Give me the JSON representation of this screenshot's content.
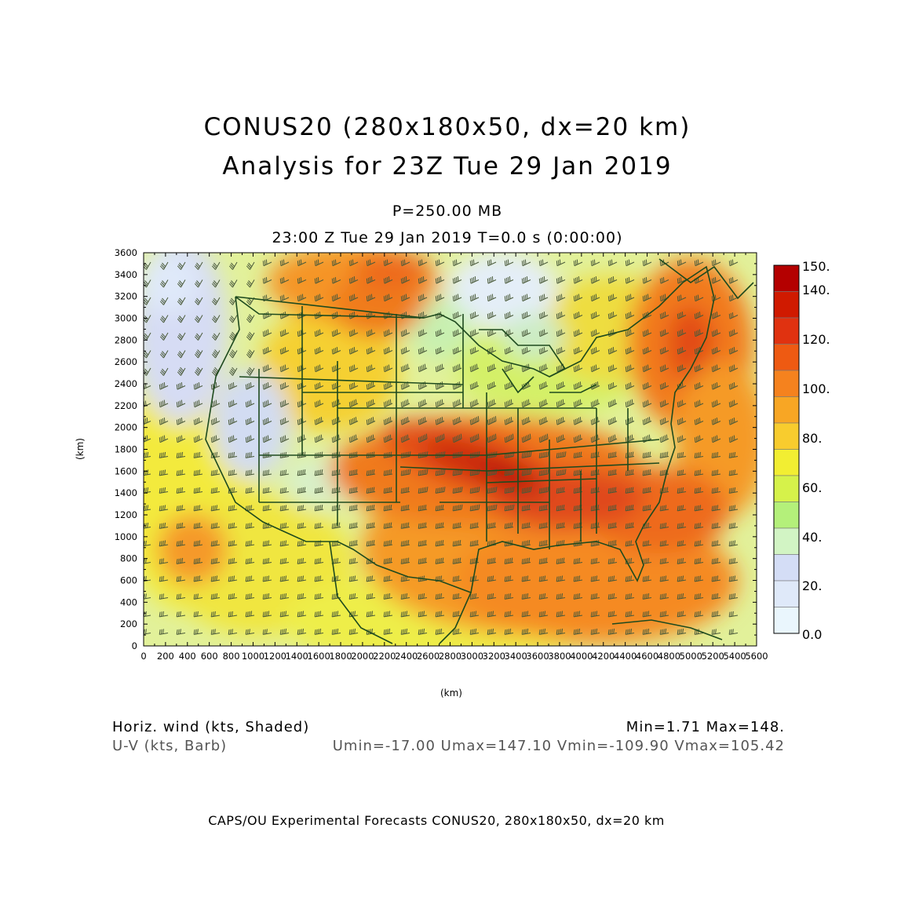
{
  "title": {
    "line1": "CONUS20 (280x180x50, dx=20 km)",
    "line2": "Analysis for 23Z Tue 29 Jan 2019",
    "level": "P=250.00 MB",
    "time": "23:00 Z Tue 29 Jan 2019   T=0.0 s (0:00:00)"
  },
  "axes": {
    "xlabel": "(km)",
    "ylabel": "(km)",
    "x_ticks": [
      "0",
      "200",
      "400",
      "600",
      "800",
      "1000",
      "1200",
      "1400",
      "1600",
      "1800",
      "2000",
      "2200",
      "2400",
      "2600",
      "2800",
      "3000",
      "3200",
      "3400",
      "3600",
      "3800",
      "4000",
      "4200",
      "4400",
      "4600",
      "4800",
      "5000",
      "5200",
      "5400",
      "5600"
    ],
    "y_ticks": [
      "0",
      "200",
      "400",
      "600",
      "800",
      "1000",
      "1200",
      "1400",
      "1600",
      "1800",
      "2000",
      "2200",
      "2400",
      "2600",
      "2800",
      "3000",
      "3200",
      "3400",
      "3600"
    ],
    "xlim": [
      0,
      5600
    ],
    "ylim": [
      0,
      3600
    ]
  },
  "colorbar": {
    "labels": [
      "150.",
      "140.",
      "120.",
      "100.",
      "80.",
      "60.",
      "40.",
      "20.",
      "0.0"
    ],
    "colors": [
      "#b40000",
      "#d01a00",
      "#e03210",
      "#ee5a12",
      "#f5821e",
      "#f8a624",
      "#f8cc2e",
      "#f2ee32",
      "#d6f24a",
      "#b4f07a",
      "#d2f4c4",
      "#d4ddf6",
      "#dfe9f9",
      "#eaf6fd"
    ]
  },
  "legend": {
    "shaded": "Horiz. wind (kts, Shaded)",
    "barb": "U-V (kts, Barb)",
    "minmax": "Min=1.71 Max=148.",
    "uv_stats": "Umin=-17.00 Umax=147.10 Vmin=-109.90 Vmax=105.42"
  },
  "footer": "CAPS/OU Experimental Forecasts  CONUS20, 280x180x50, dx=20 km",
  "chart_data": {
    "type": "heatmap",
    "field": "Horiz. wind (kts, Shaded)",
    "xlim": [
      0,
      5600
    ],
    "ylim": [
      0,
      3600
    ],
    "color_levels": [
      0,
      10,
      20,
      30,
      40,
      50,
      60,
      70,
      80,
      90,
      100,
      110,
      120,
      130,
      140,
      150
    ],
    "min": 1.71,
    "max": 148
  }
}
